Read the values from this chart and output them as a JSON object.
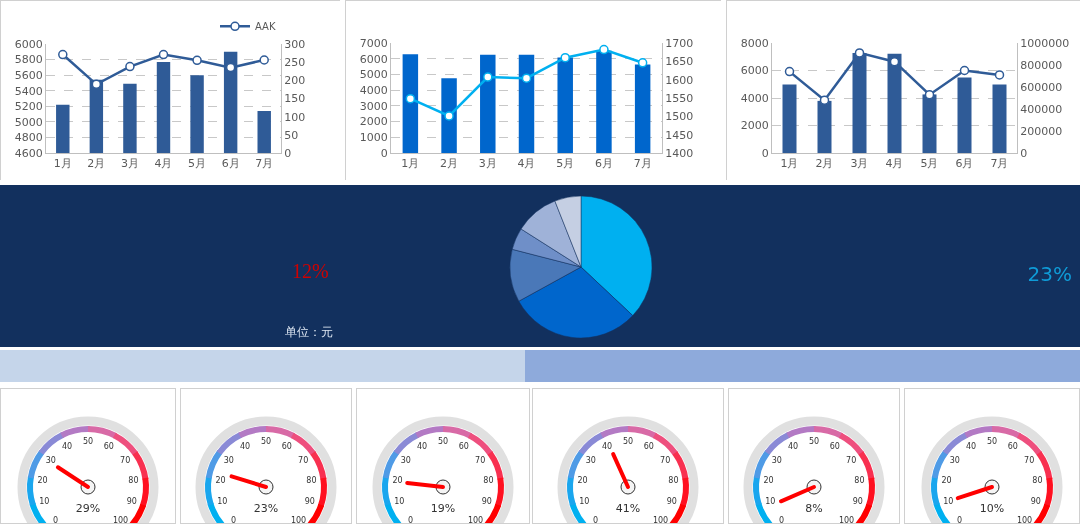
{
  "chart_data": [
    {
      "type": "bar",
      "categories": [
        "1月",
        "2月",
        "3月",
        "4月",
        "5月",
        "6月",
        "7月"
      ],
      "series": [
        {
          "type": "bar",
          "color": "#2f5b97",
          "values": [
            5220,
            5540,
            5490,
            5770,
            5600,
            5900,
            5140
          ]
        },
        {
          "type": "line",
          "name": "AAK",
          "axis": "y2",
          "color": "#2f5b97",
          "values": [
            271,
            189,
            238,
            271,
            255,
            235,
            256
          ]
        }
      ],
      "ylim": [
        4600,
        6000
      ],
      "yticks": [
        4600,
        4800,
        5000,
        5200,
        5400,
        5600,
        5800,
        6000
      ],
      "y2lim": [
        0,
        300
      ],
      "y2ticks": [
        0,
        50,
        100,
        150,
        200,
        250,
        300
      ],
      "grid": "y",
      "legend": "top right",
      "marker": "circle"
    },
    {
      "type": "bar",
      "categories": [
        "1月",
        "2月",
        "3月",
        "4月",
        "5月",
        "6月",
        "7月"
      ],
      "series": [
        {
          "type": "bar",
          "color": "#0066cc",
          "values": [
            6290,
            4760,
            6250,
            6250,
            6070,
            6500,
            5630
          ]
        },
        {
          "type": "line",
          "axis": "y2",
          "color": "#00b0f0",
          "values": [
            1548,
            1501,
            1607,
            1604,
            1660,
            1682,
            1646
          ]
        }
      ],
      "ylim": [
        0,
        7000
      ],
      "yticks": [
        0,
        1000,
        2000,
        3000,
        4000,
        5000,
        6000,
        7000
      ],
      "y2lim": [
        1400,
        1700
      ],
      "y2ticks": [
        1400,
        1450,
        1500,
        1550,
        1600,
        1650,
        1700
      ],
      "grid": "y",
      "marker": "circle"
    },
    {
      "type": "bar",
      "categories": [
        "1月",
        "2月",
        "3月",
        "4月",
        "5月",
        "6月",
        "7月"
      ],
      "series": [
        {
          "type": "bar",
          "color": "#2f5b97",
          "values": [
            4990,
            3790,
            7270,
            7220,
            4260,
            5490,
            4990
          ]
        },
        {
          "type": "line",
          "axis": "y2",
          "color": "#2f5b97",
          "values": [
            740000,
            480000,
            910000,
            830000,
            530000,
            750000,
            710000
          ]
        }
      ],
      "ylim": [
        0,
        8000
      ],
      "yticks": [
        0,
        2000,
        4000,
        6000,
        8000
      ],
      "y2lim": [
        0,
        1000000
      ],
      "y2ticks": [
        0,
        200000,
        400000,
        600000,
        800000,
        1000000
      ],
      "grid": "y",
      "marker": "circle"
    },
    {
      "type": "other",
      "annotations": [
        "12%",
        "单位：元"
      ]
    },
    {
      "type": "pie",
      "categories": [
        null,
        null,
        null,
        null,
        null,
        null
      ],
      "values": [
        37,
        30,
        12,
        5,
        10,
        6
      ],
      "colors": [
        "#00b0f0",
        "#0066cc",
        "#4a78b8",
        "#6f8fc8",
        "#9fb2d8",
        "#c5cfe3"
      ]
    },
    {
      "type": "other",
      "annotations": [
        "23%"
      ]
    },
    {
      "type": "other",
      "values": [
        29
      ],
      "value_labels": [
        "29%"
      ],
      "annotations": [
        "0",
        "10",
        "20",
        "30",
        "40",
        "50",
        "60",
        "70",
        "80",
        "90",
        "100"
      ]
    },
    {
      "type": "other",
      "values": [
        23
      ],
      "value_labels": [
        "23%"
      ],
      "annotations": [
        "0",
        "10",
        "20",
        "30",
        "40",
        "50",
        "60",
        "70",
        "80",
        "90",
        "100"
      ]
    },
    {
      "type": "other",
      "values": [
        19
      ],
      "value_labels": [
        "19%"
      ],
      "annotations": [
        "0",
        "10",
        "20",
        "30",
        "40",
        "50",
        "60",
        "70",
        "80",
        "90",
        "100"
      ]
    },
    {
      "type": "other",
      "values": [
        41
      ],
      "value_labels": [
        "41%"
      ],
      "annotations": [
        "0",
        "10",
        "20",
        "30",
        "40",
        "50",
        "60",
        "70",
        "80",
        "90",
        "100"
      ]
    },
    {
      "type": "other",
      "values": [
        8
      ],
      "value_labels": [
        "8%"
      ],
      "annotations": [
        "0",
        "10",
        "20",
        "30",
        "40",
        "50",
        "60",
        "70",
        "80",
        "90",
        "100"
      ]
    },
    {
      "type": "other",
      "values": [
        10
      ],
      "value_labels": [
        "10%"
      ],
      "annotations": [
        "0",
        "10",
        "20",
        "30",
        "40",
        "50",
        "60",
        "70",
        "80",
        "90",
        "100"
      ]
    }
  ]
}
